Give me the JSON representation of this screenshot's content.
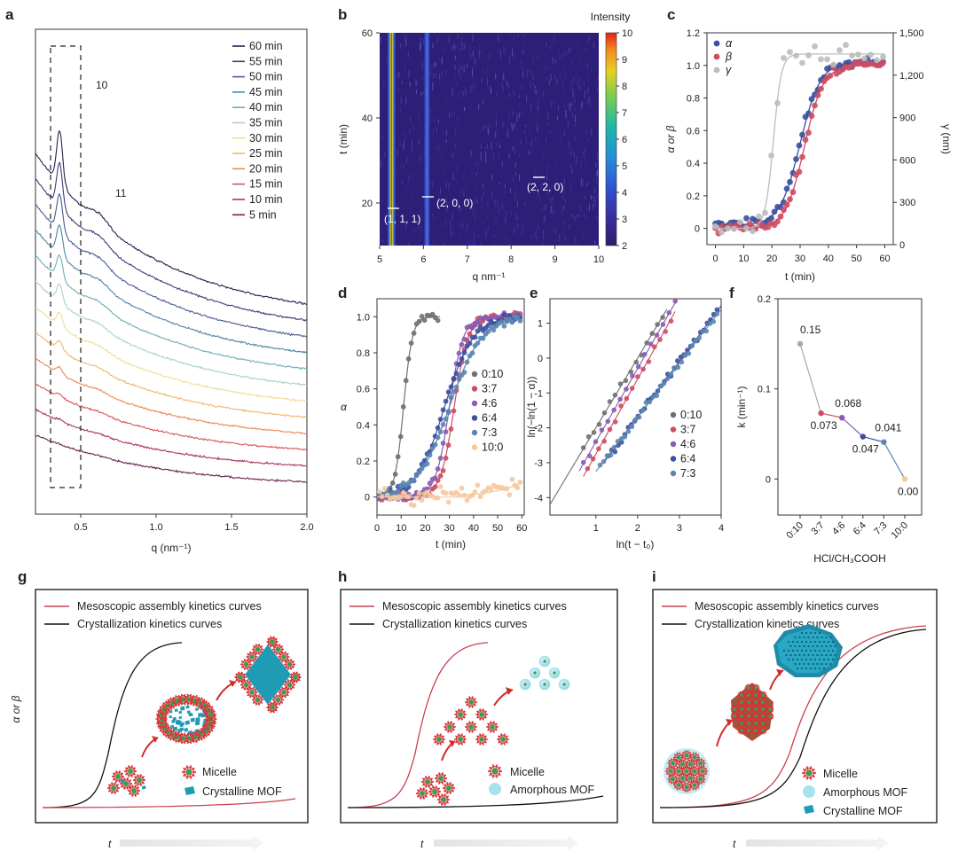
{
  "panel_labels": [
    "a",
    "b",
    "c",
    "d",
    "e",
    "f",
    "g",
    "h",
    "i"
  ],
  "chart_data": [
    {
      "id": "a",
      "type": "line",
      "xlabel": "q (nm⁻¹)",
      "xlim": [
        0.2,
        2.0
      ],
      "xticks": [
        "0.5",
        "1.0",
        "1.5",
        "2.0"
      ],
      "xtick_values": [
        0.5,
        1.0,
        1.5,
        2.0
      ],
      "peak_labels": [
        "10",
        "11"
      ],
      "highlight_range_q": [
        0.3,
        0.5
      ],
      "series_names": [
        "60 min",
        "55 min",
        "50 min",
        "45 min",
        "40 min",
        "35 min",
        "30 min",
        "25 min",
        "20 min",
        "15 min",
        "10 min",
        "5 min"
      ],
      "series_colors": [
        "#2a1f4e",
        "#3f3a78",
        "#4a5a96",
        "#4e86a6",
        "#6cb0b4",
        "#a9d6c0",
        "#ecdf98",
        "#f5b66e",
        "#ee8656",
        "#d9555a",
        "#a9345a",
        "#6b2150"
      ]
    },
    {
      "id": "b",
      "type": "heatmap",
      "xlabel": "q nm⁻¹",
      "ylabel": "t (min)",
      "xlim": [
        5,
        10
      ],
      "ylim": [
        10,
        60
      ],
      "xticks": [
        "5",
        "6",
        "7",
        "8",
        "9",
        "10"
      ],
      "xtick_values": [
        5,
        6,
        7,
        8,
        9,
        10
      ],
      "yticks": [
        "20",
        "40",
        "60"
      ],
      "ytick_values": [
        20,
        40,
        60
      ],
      "colorbar_title": "Intensity",
      "colorbar_range": [
        2,
        10
      ],
      "colorbar_ticks": [
        "2",
        "3",
        "4",
        "5",
        "6",
        "7",
        "8",
        "9",
        "10"
      ],
      "peaks": [
        {
          "label": "(1, 1, 1)",
          "q": 5.27
        },
        {
          "label": "(2, 0, 0)",
          "q": 6.08
        },
        {
          "label": "(2, 2, 0)",
          "q": 8.7
        }
      ]
    },
    {
      "id": "c",
      "type": "scatter",
      "xlabel": "t (min)",
      "ylabel_left": "α or β",
      "ylabel_right": "γ (nm)",
      "xlim": [
        -3,
        63
      ],
      "ylim_left": [
        -0.1,
        1.2
      ],
      "ylim_right": [
        0,
        1500
      ],
      "xticks": [
        "0",
        "10",
        "20",
        "30",
        "40",
        "50",
        "60"
      ],
      "xtick_values": [
        0,
        10,
        20,
        30,
        40,
        50,
        60
      ],
      "yticks_left": [
        "0",
        "0.2",
        "0.4",
        "0.6",
        "0.8",
        "1.0",
        "1.2"
      ],
      "ytick_left_values": [
        0,
        0.2,
        0.4,
        0.6,
        0.8,
        1.0,
        1.2
      ],
      "yticks_right": [
        "0",
        "300",
        "600",
        "900",
        "1,200",
        "1,500"
      ],
      "ytick_right_values": [
        0,
        300,
        600,
        900,
        1200,
        1500
      ],
      "series": [
        {
          "name": "α",
          "color": "#3b4fa0",
          "t0": 30,
          "k": 0.28,
          "ymax": 1.02,
          "base": 0.02
        },
        {
          "name": "β",
          "color": "#cc4d62",
          "t0": 31.5,
          "k": 0.3,
          "ymax": 1.0,
          "base": 0.0
        },
        {
          "name": "γ",
          "color": "#bdbdbd",
          "t0": 20.5,
          "k": 0.7,
          "ymax": 1.07,
          "base": 0.0
        }
      ]
    },
    {
      "id": "d",
      "type": "scatter",
      "xlabel": "t (min)",
      "ylabel": "α",
      "xlim": [
        0,
        61
      ],
      "ylim": [
        -0.1,
        1.1
      ],
      "xticks": [
        "0",
        "10",
        "20",
        "30",
        "40",
        "50",
        "60"
      ],
      "xtick_values": [
        0,
        10,
        20,
        30,
        40,
        50,
        60
      ],
      "yticks": [
        "0",
        "0.2",
        "0.4",
        "0.6",
        "0.8",
        "1.0"
      ],
      "ytick_values": [
        0,
        0.2,
        0.4,
        0.6,
        0.8,
        1.0
      ],
      "series": [
        {
          "name": "0:10",
          "color": "#6f6f6f",
          "t0": 11,
          "k": 0.55,
          "tend": 26
        },
        {
          "name": "3:7",
          "color": "#cc4d62",
          "t0": 32,
          "k": 0.35,
          "tend": 60
        },
        {
          "name": "4:6",
          "color": "#8a5bb0",
          "t0": 30,
          "k": 0.35,
          "tend": 60
        },
        {
          "name": "6:4",
          "color": "#3b4fa0",
          "t0": 28,
          "k": 0.17,
          "tend": 60
        },
        {
          "name": "7:3",
          "color": "#5b86b0",
          "t0": 30,
          "k": 0.15,
          "tend": 60
        },
        {
          "name": "10:0",
          "color": "#f5c9a0",
          "t0": 999,
          "k": 0.1,
          "tend": 60
        }
      ]
    },
    {
      "id": "e",
      "type": "scatter",
      "xlabel": "ln(t − t₀)",
      "ylabel": "ln(−ln(1 − α))",
      "xlim": [
        -0.1,
        4
      ],
      "ylim": [
        -4.5,
        1.7
      ],
      "xticks": [
        "1",
        "2",
        "3",
        "4"
      ],
      "xtick_values": [
        1,
        2,
        3,
        4
      ],
      "yticks": [
        "-4",
        "-3",
        "-2",
        "-1",
        "0",
        "1"
      ],
      "ytick_values": [
        -4,
        -3,
        -2,
        -1,
        0,
        1
      ],
      "series": [
        {
          "name": "0:10",
          "color": "#6f6f6f",
          "x": [
            0.7,
            2.6
          ],
          "slope": 2.0,
          "intercept": -4.0
        },
        {
          "name": "3:7",
          "color": "#cc4d62",
          "x": [
            0.8,
            2.8
          ],
          "slope": 2.15,
          "intercept": -4.9
        },
        {
          "name": "4:6",
          "color": "#8a5bb0",
          "x": [
            0.7,
            2.9
          ],
          "slope": 2.1,
          "intercept": -4.5
        },
        {
          "name": "6:4",
          "color": "#3b4fa0",
          "x": [
            1.3,
            3.9
          ],
          "slope": 1.6,
          "intercept": -4.9
        },
        {
          "name": "7:3",
          "color": "#5b86b0",
          "x": [
            1.1,
            3.9
          ],
          "slope": 1.55,
          "intercept": -4.8
        }
      ]
    },
    {
      "id": "f",
      "type": "line",
      "xlabel": "HCl/CH₃COOH",
      "ylabel": "k (min⁻¹)",
      "categories": [
        "0:10",
        "3:7",
        "4:6",
        "6:4",
        "7:3",
        "10:0"
      ],
      "values": [
        0.15,
        0.073,
        0.068,
        0.047,
        0.041,
        0.0
      ],
      "value_labels": [
        "0.15",
        "0.073",
        "0.068",
        "0.047",
        "0.041",
        "0.00"
      ],
      "colors": [
        "#a8a8a8",
        "#cc4d62",
        "#8a5bb0",
        "#3b4fa0",
        "#5b86b0",
        "#f5c9a0"
      ],
      "ylim": [
        -0.04,
        0.2
      ],
      "yticks": [
        "0",
        "0.1",
        "0.2"
      ],
      "ytick_values": [
        0,
        0.1,
        0.2
      ]
    }
  ],
  "schematics": {
    "legend_red": "Mesoscopic assembly kinetics curves",
    "legend_black": "Crystallization kinetics curves",
    "y_label": "α or β",
    "x_label": "t",
    "micelle": "Micelle",
    "crystalline_mof": "Crystalline MOF",
    "amorphous_mof": "Amorphous MOF"
  },
  "colors": {
    "red_curve": "#c8414e",
    "black_curve": "#111111",
    "mof_teal": "#1f9bb5",
    "amorphous": "#a8e2ec"
  }
}
